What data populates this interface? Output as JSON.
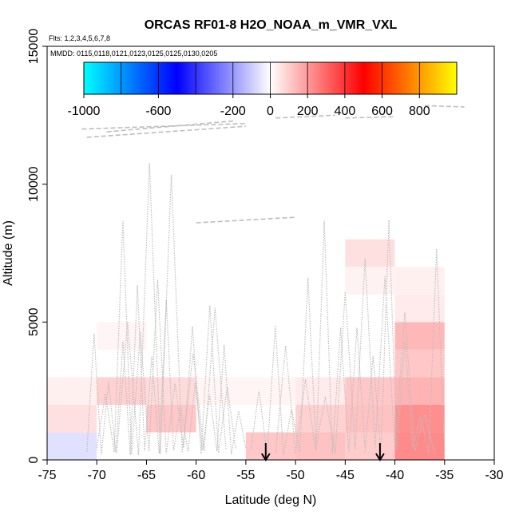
{
  "chart_data": {
    "type": "heatmap",
    "title": "ORCAS RF01-8 H2O_NOAA_m_VMR_VXL",
    "subtitle_flights": "Flts: 1,2,3,4,5,6,7,8",
    "subtitle_dates": "MMDD: 0115,0118,0121,0123,0125,0125,0130,0205",
    "xlabel": "Latitude (deg N)",
    "ylabel": "Altitude (m)",
    "xlim": [
      -75,
      -30
    ],
    "ylim": [
      0,
      15000
    ],
    "x_ticks": [
      -75,
      -70,
      -65,
      -60,
      -55,
      -50,
      -45,
      -40,
      -35,
      -30
    ],
    "y_ticks": [
      0,
      5000,
      10000,
      15000
    ],
    "colorbar": {
      "min": -1000,
      "max": 1000,
      "ticks": [
        -1000,
        -600,
        -200,
        0,
        200,
        400,
        600,
        800
      ],
      "colors": [
        "#00ffff",
        "#0000ff",
        "#ffffff",
        "#ff0000",
        "#ffff00"
      ]
    },
    "cells": [
      {
        "lon_min": -75,
        "lon_max": -70,
        "alt_min": 0,
        "alt_max": 1000,
        "value": -60
      },
      {
        "lon_min": -75,
        "lon_max": -70,
        "alt_min": 1000,
        "alt_max": 2000,
        "value": 60
      },
      {
        "lon_min": -75,
        "lon_max": -70,
        "alt_min": 2000,
        "alt_max": 3000,
        "value": 30
      },
      {
        "lon_min": -70,
        "lon_max": -65,
        "alt_min": 2000,
        "alt_max": 3000,
        "value": 90
      },
      {
        "lon_min": -65,
        "lon_max": -60,
        "alt_min": 1000,
        "alt_max": 2000,
        "value": 110
      },
      {
        "lon_min": -65,
        "lon_max": -60,
        "alt_min": 2000,
        "alt_max": 3000,
        "value": 70
      },
      {
        "lon_min": -70,
        "lon_max": -65,
        "alt_min": 4000,
        "alt_max": 5000,
        "value": 20
      },
      {
        "lon_min": -55,
        "lon_max": -50,
        "alt_min": 0,
        "alt_max": 1000,
        "value": 110
      },
      {
        "lon_min": -50,
        "lon_max": -45,
        "alt_min": 0,
        "alt_max": 1000,
        "value": 120
      },
      {
        "lon_min": -50,
        "lon_max": -45,
        "alt_min": 1000,
        "alt_max": 2000,
        "value": 90
      },
      {
        "lon_min": -50,
        "lon_max": -45,
        "alt_min": 2000,
        "alt_max": 3000,
        "value": 40
      },
      {
        "lon_min": -45,
        "lon_max": -40,
        "alt_min": 0,
        "alt_max": 1000,
        "value": 100
      },
      {
        "lon_min": -45,
        "lon_max": -40,
        "alt_min": 1000,
        "alt_max": 2000,
        "value": 120
      },
      {
        "lon_min": -45,
        "lon_max": -40,
        "alt_min": 2000,
        "alt_max": 3000,
        "value": 110
      },
      {
        "lon_min": -45,
        "lon_max": -40,
        "alt_min": 7000,
        "alt_max": 8000,
        "value": 60
      },
      {
        "lon_min": -45,
        "lon_max": -40,
        "alt_min": 6000,
        "alt_max": 7000,
        "value": 25
      },
      {
        "lon_min": -40,
        "lon_max": -35,
        "alt_min": 0,
        "alt_max": 1000,
        "value": 230
      },
      {
        "lon_min": -40,
        "lon_max": -35,
        "alt_min": 1000,
        "alt_max": 2000,
        "value": 220
      },
      {
        "lon_min": -40,
        "lon_max": -35,
        "alt_min": 2000,
        "alt_max": 3000,
        "value": 150
      },
      {
        "lon_min": -40,
        "lon_max": -35,
        "alt_min": 3000,
        "alt_max": 4000,
        "value": 110
      },
      {
        "lon_min": -40,
        "lon_max": -35,
        "alt_min": 4000,
        "alt_max": 5000,
        "value": 140
      },
      {
        "lon_min": -40,
        "lon_max": -35,
        "alt_min": 5000,
        "alt_max": 6000,
        "value": 40
      },
      {
        "lon_min": -40,
        "lon_max": -35,
        "alt_min": 6000,
        "alt_max": 7000,
        "value": 30
      },
      {
        "lon_min": -55,
        "lon_max": -50,
        "alt_min": 2000,
        "alt_max": 3000,
        "value": 20
      },
      {
        "lon_min": -60,
        "lon_max": -55,
        "alt_min": 2000,
        "alt_max": 3000,
        "value": 20
      }
    ],
    "arrows_at_latitude": [
      -53,
      -41.5
    ],
    "flight_track_color": "#bebebe"
  }
}
